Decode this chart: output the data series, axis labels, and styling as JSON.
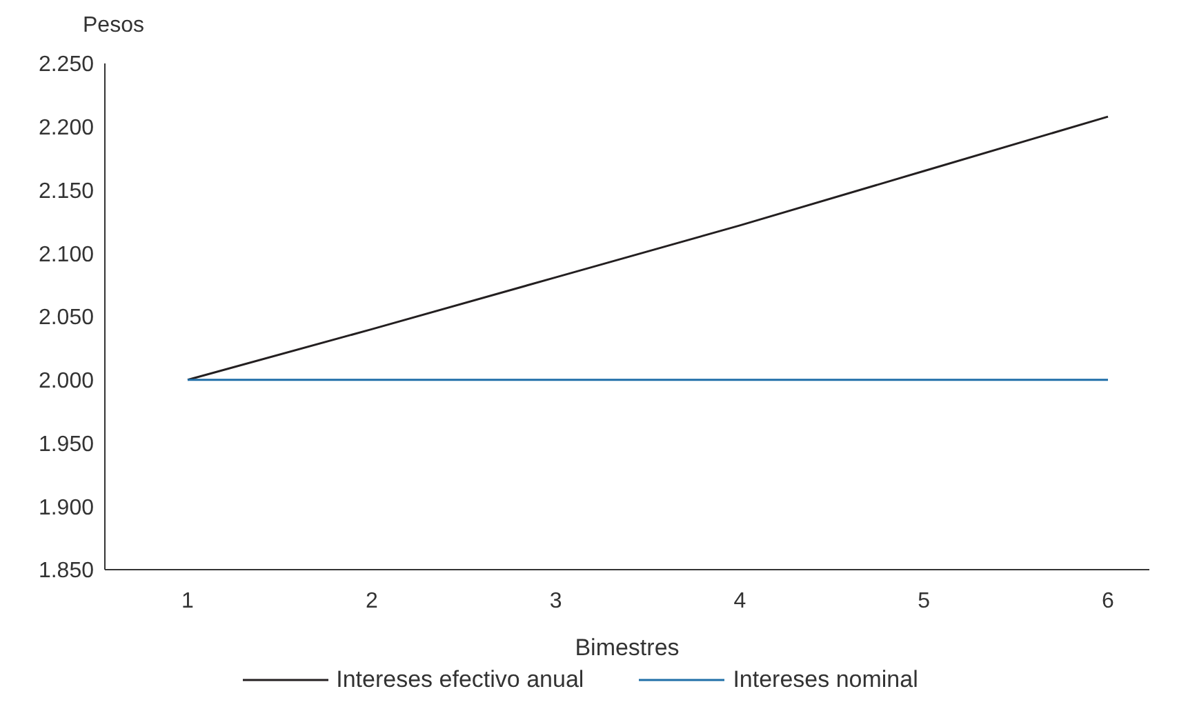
{
  "chart_data": {
    "type": "line",
    "xlabel": "Bimestres",
    "ylabel": "Pesos",
    "categories": [
      "1",
      "2",
      "3",
      "4",
      "5",
      "6"
    ],
    "series": [
      {
        "name": "Intereses efectivo anual",
        "color": "#231f20",
        "values": [
          2000,
          2040,
          2081,
          2122,
          2165,
          2208
        ]
      },
      {
        "name": "Intereses nominal",
        "color": "#1f6ea8",
        "values": [
          2000,
          2000,
          2000,
          2000,
          2000,
          2000
        ]
      }
    ],
    "ylim": [
      1850,
      2250
    ],
    "yticks": [
      {
        "value": 1850,
        "label": "1.850"
      },
      {
        "value": 1900,
        "label": "1.900"
      },
      {
        "value": 1950,
        "label": "1.950"
      },
      {
        "value": 2000,
        "label": "2.000"
      },
      {
        "value": 2050,
        "label": "2.050"
      },
      {
        "value": 2100,
        "label": "2.100"
      },
      {
        "value": 2150,
        "label": "2.150"
      },
      {
        "value": 2200,
        "label": "2.200"
      },
      {
        "value": 2250,
        "label": "2.250"
      }
    ],
    "grid": false,
    "legend": "bottom",
    "marker": "none",
    "line_style": "solid"
  }
}
